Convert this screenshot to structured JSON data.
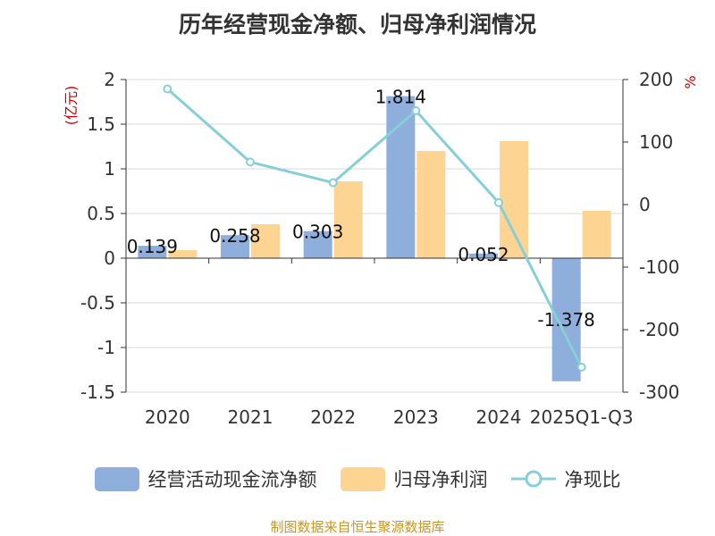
{
  "chart_data": {
    "type": "bar",
    "title": "历年经营现金净额、归母净利润情况",
    "categories": [
      "2020",
      "2021",
      "2022",
      "2023",
      "2024",
      "2025Q1-Q3"
    ],
    "series": [
      {
        "name": "经营活动现金流净额",
        "kind": "bar",
        "axis": "left",
        "color": "#8eaedc",
        "values": [
          0.139,
          0.258,
          0.303,
          1.814,
          0.052,
          -1.378
        ],
        "labels": [
          "0.139",
          "0.258",
          "0.303",
          "1.814",
          "0.052",
          "-1.378"
        ]
      },
      {
        "name": "归母净利润",
        "kind": "bar",
        "axis": "left",
        "color": "#fdd492",
        "values": [
          0.09,
          0.38,
          0.86,
          1.2,
          1.31,
          0.53
        ]
      },
      {
        "name": "净现比",
        "kind": "line",
        "axis": "right",
        "color": "#86cfd8",
        "values": [
          185,
          68,
          35,
          150,
          3,
          -260
        ]
      }
    ],
    "y_left": {
      "label": "(亿元)",
      "min": -1.5,
      "max": 2,
      "ticks": [
        "-1.5",
        "-1",
        "-0.5",
        "0",
        "0.5",
        "1",
        "1.5",
        "2"
      ]
    },
    "y_right": {
      "label": "%",
      "min": -300,
      "max": 200,
      "ticks": [
        "-300",
        "-200",
        "-100",
        "0",
        "100",
        "200"
      ]
    },
    "grid": true,
    "legend_position": "bottom"
  },
  "source": "制图数据来自恒生聚源数据库"
}
